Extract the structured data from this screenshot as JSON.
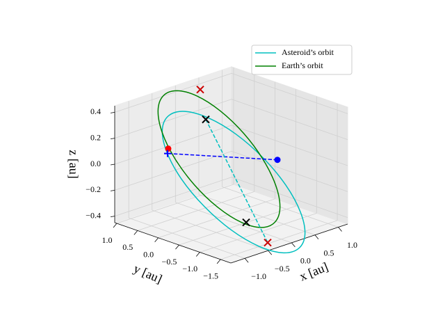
{
  "chart_data": {
    "type": "line3d",
    "xlabel": "x [au]",
    "ylabel": "y [au]",
    "zlabel": "z [au]",
    "xlim": [
      -1.3,
      1.2
    ],
    "ylim": [
      -1.75,
      1.05
    ],
    "zlim": [
      -0.45,
      0.45
    ],
    "xticks": [
      {
        "value": -1.0,
        "label": "−1.0"
      },
      {
        "value": -0.5,
        "label": "−0.5"
      },
      {
        "value": 0,
        "label": "0.0"
      },
      0.5,
      {
        "value": 1.0,
        "label": "1.0"
      }
    ],
    "yticks": [
      {
        "value": -1.5,
        "label": "−1.5"
      },
      {
        "value": -1.0,
        "label": "−1.0"
      },
      {
        "value": -0.5,
        "label": "−0.5"
      },
      {
        "value": 0,
        "label": "0.0"
      },
      0.5,
      {
        "value": 1.0,
        "label": "1.0"
      }
    ],
    "zticks": [
      {
        "value": -0.4,
        "label": "−0.4"
      },
      {
        "value": -0.2,
        "label": "−0.2"
      },
      {
        "value": 0,
        "label": "0.0"
      },
      0.2,
      0.4
    ],
    "grid": true,
    "legend": "upper right",
    "series": [
      {
        "name": "Asteroid’s orbit",
        "color": "#00bfbf",
        "x": [
          0.25,
          0.591,
          0.871,
          1.051,
          1.1,
          1.013,
          0.801,
          0.499,
          0.15,
          -0.191,
          -0.471,
          -0.651,
          -0.7,
          -0.613,
          -0.401,
          -0.099,
          0.25
        ],
        "y": [
          0.533,
          0.255,
          -0.081,
          -0.425,
          -0.723,
          -0.931,
          -1.015,
          -0.965,
          -0.787,
          -0.509,
          -0.173,
          0.171,
          0.469,
          0.677,
          0.761,
          0.711,
          0.533
        ],
        "z": [
          0.227,
          0.092,
          -0.086,
          -0.279,
          -0.459,
          -0.597,
          -0.672,
          -0.674,
          -0.601,
          -0.466,
          -0.288,
          -0.095,
          0.085,
          0.223,
          0.298,
          0.3,
          0.227
        ]
      },
      {
        "name": "Earth’s orbit",
        "color": "#008000",
        "x": [
          0.048,
          0.335,
          0.571,
          0.72,
          0.76,
          0.684,
          0.503,
          0.247,
          -0.048,
          -0.335,
          -0.571,
          -0.72,
          -0.76,
          -0.684,
          -0.503,
          -0.247,
          0.048
        ],
        "y": [
          0.587,
          0.346,
          0.052,
          -0.249,
          -0.513,
          -0.699,
          -0.778,
          -0.738,
          -0.587,
          -0.346,
          -0.052,
          0.249,
          0.513,
          0.699,
          0.778,
          0.738,
          0.587
        ],
        "z": [
          0.415,
          0.292,
          0.125,
          -0.061,
          -0.238,
          -0.379,
          -0.461,
          -0.474,
          -0.415,
          -0.292,
          -0.125,
          0.061,
          0.238,
          0.379,
          0.461,
          0.474,
          0.415
        ]
      }
    ],
    "segments": [
      {
        "color": "#0000ff",
        "linestyle": "dashed",
        "x": [
          0.9,
          -0.7
        ],
        "y": [
          -0.395,
          0.452
        ],
        "z": [
          -0.07,
          0.077
        ]
      },
      {
        "color": "#00bfbf",
        "linestyle": "dashed",
        "x": [
          0.2,
          0.3
        ],
        "y": [
          0.544,
          -0.836
        ],
        "z": [
          0.221,
          -0.586
        ]
      }
    ],
    "markers": [
      {
        "marker": "o",
        "color": "#ff0000",
        "x": -0.7,
        "y": 0.436,
        "z": 0.116
      },
      {
        "marker": "+",
        "color": "#0000ff",
        "x": -0.7,
        "y": 0.452,
        "z": 0.077
      },
      {
        "marker": "o",
        "color": "#0000ff",
        "x": 0.9,
        "y": -0.395,
        "z": -0.07
      },
      {
        "marker": "x",
        "color": "#000000",
        "x": 0.2,
        "y": 0.544,
        "z": 0.221
      },
      {
        "marker": "x",
        "color": "#000000",
        "x": 0.05,
        "y": -0.598,
        "z": -0.427
      },
      {
        "marker": "x",
        "color": "#cc0000",
        "x": 0.05,
        "y": 0.509,
        "z": 0.473
      },
      {
        "marker": "x",
        "color": "#cc0000",
        "x": 0.3,
        "y": -0.836,
        "z": -0.586
      }
    ]
  }
}
